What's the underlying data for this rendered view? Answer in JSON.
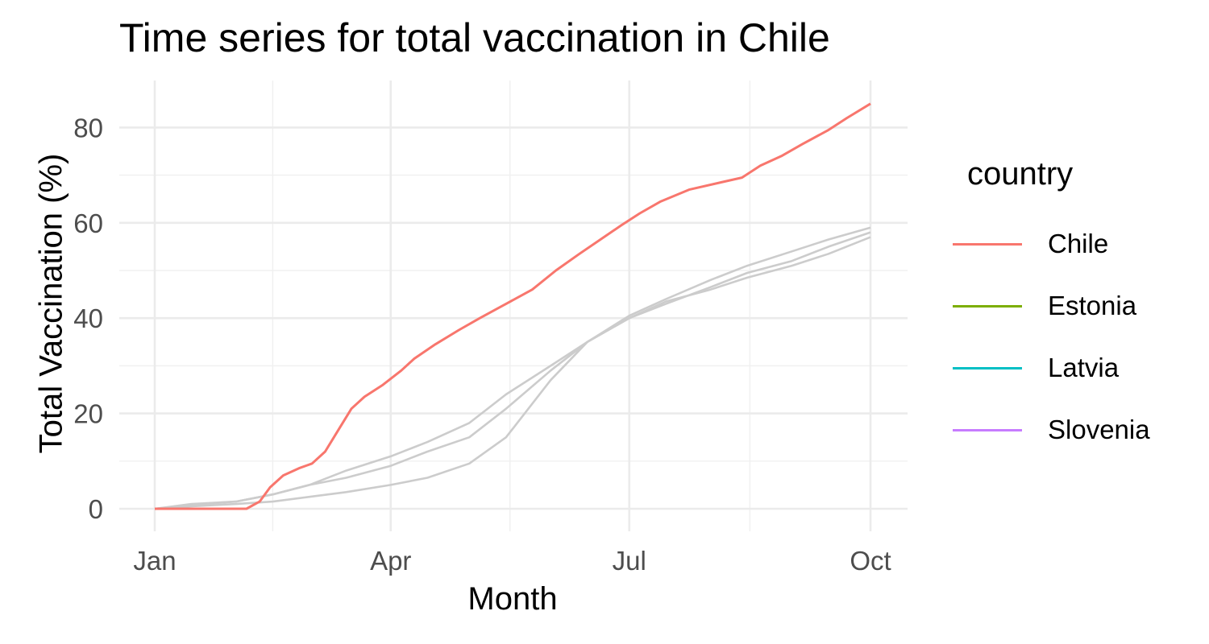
{
  "chart_data": {
    "type": "line",
    "title": "Time series for total vaccination in Chile",
    "xlabel": "Month",
    "ylabel": "Total Vaccination (%)",
    "x_ticks": [
      "Jan",
      "Apr",
      "Jul",
      "Oct"
    ],
    "y_ticks": [
      "0",
      "20",
      "40",
      "60",
      "80"
    ],
    "xlim": [
      "2021-01-01",
      "2021-10-01"
    ],
    "ylim": [
      0,
      85
    ],
    "grid": true,
    "legend": {
      "title": "country",
      "placement": "right"
    },
    "highlight_color": "#F8766D",
    "muted_color": "#cccccc",
    "series": [
      {
        "name": "Chile",
        "color": "#F8766D",
        "highlight": true,
        "points": [
          [
            "2021-01-01",
            0
          ],
          [
            "2021-02-05",
            0
          ],
          [
            "2021-02-10",
            1.5
          ],
          [
            "2021-02-14",
            4.5
          ],
          [
            "2021-02-19",
            7
          ],
          [
            "2021-02-25",
            8.5
          ],
          [
            "2021-03-02",
            9.5
          ],
          [
            "2021-03-07",
            12
          ],
          [
            "2021-03-12",
            16.5
          ],
          [
            "2021-03-17",
            21
          ],
          [
            "2021-03-22",
            23.5
          ],
          [
            "2021-03-29",
            26
          ],
          [
            "2021-04-05",
            29
          ],
          [
            "2021-04-10",
            31.5
          ],
          [
            "2021-04-18",
            34.5
          ],
          [
            "2021-04-27",
            37.5
          ],
          [
            "2021-05-05",
            40
          ],
          [
            "2021-05-15",
            43
          ],
          [
            "2021-05-25",
            46
          ],
          [
            "2021-06-03",
            50
          ],
          [
            "2021-06-12",
            53.5
          ],
          [
            "2021-06-20",
            56.5
          ],
          [
            "2021-06-28",
            59.5
          ],
          [
            "2021-07-05",
            62
          ],
          [
            "2021-07-13",
            64.5
          ],
          [
            "2021-07-24",
            67
          ],
          [
            "2021-08-05",
            68.5
          ],
          [
            "2021-08-13",
            69.5
          ],
          [
            "2021-08-20",
            72
          ],
          [
            "2021-08-28",
            74
          ],
          [
            "2021-09-05",
            76.5
          ],
          [
            "2021-09-15",
            79.5
          ],
          [
            "2021-09-22",
            82
          ],
          [
            "2021-10-01",
            85
          ]
        ]
      },
      {
        "name": "Estonia",
        "color": "#7CAE00",
        "highlight": false,
        "points": [
          [
            "2021-01-01",
            0
          ],
          [
            "2021-01-15",
            0.8
          ],
          [
            "2021-02-01",
            1.5
          ],
          [
            "2021-02-15",
            3
          ],
          [
            "2021-03-01",
            5
          ],
          [
            "2021-03-15",
            8
          ],
          [
            "2021-04-01",
            11
          ],
          [
            "2021-04-15",
            14
          ],
          [
            "2021-05-01",
            18
          ],
          [
            "2021-05-15",
            24
          ],
          [
            "2021-06-01",
            30
          ],
          [
            "2021-06-15",
            35
          ],
          [
            "2021-07-01",
            40.5
          ],
          [
            "2021-07-15",
            44
          ],
          [
            "2021-08-01",
            48
          ],
          [
            "2021-08-15",
            51
          ],
          [
            "2021-09-01",
            54
          ],
          [
            "2021-09-15",
            56.5
          ],
          [
            "2021-10-01",
            59
          ]
        ]
      },
      {
        "name": "Latvia",
        "color": "#00BFC4",
        "highlight": false,
        "points": [
          [
            "2021-01-01",
            0
          ],
          [
            "2021-01-15",
            0.5
          ],
          [
            "2021-02-01",
            1
          ],
          [
            "2021-02-15",
            1.5
          ],
          [
            "2021-03-01",
            2.5
          ],
          [
            "2021-03-15",
            3.5
          ],
          [
            "2021-04-01",
            5
          ],
          [
            "2021-04-15",
            6.5
          ],
          [
            "2021-05-01",
            9.5
          ],
          [
            "2021-05-15",
            15
          ],
          [
            "2021-06-01",
            27
          ],
          [
            "2021-06-15",
            35
          ],
          [
            "2021-07-01",
            40
          ],
          [
            "2021-07-15",
            43.5
          ],
          [
            "2021-08-01",
            46
          ],
          [
            "2021-08-15",
            48.5
          ],
          [
            "2021-09-01",
            51
          ],
          [
            "2021-09-15",
            53.5
          ],
          [
            "2021-10-01",
            57
          ]
        ]
      },
      {
        "name": "Slovenia",
        "color": "#C77CFF",
        "highlight": false,
        "points": [
          [
            "2021-01-01",
            0
          ],
          [
            "2021-01-15",
            1
          ],
          [
            "2021-02-01",
            1.5
          ],
          [
            "2021-02-15",
            3
          ],
          [
            "2021-03-01",
            5
          ],
          [
            "2021-03-15",
            6.5
          ],
          [
            "2021-04-01",
            9
          ],
          [
            "2021-04-15",
            12
          ],
          [
            "2021-05-01",
            15
          ],
          [
            "2021-05-15",
            21
          ],
          [
            "2021-06-01",
            29
          ],
          [
            "2021-06-15",
            35
          ],
          [
            "2021-07-01",
            40
          ],
          [
            "2021-07-15",
            43
          ],
          [
            "2021-08-01",
            46.5
          ],
          [
            "2021-08-15",
            49.5
          ],
          [
            "2021-09-01",
            52
          ],
          [
            "2021-09-15",
            55
          ],
          [
            "2021-10-01",
            58
          ]
        ]
      }
    ]
  }
}
